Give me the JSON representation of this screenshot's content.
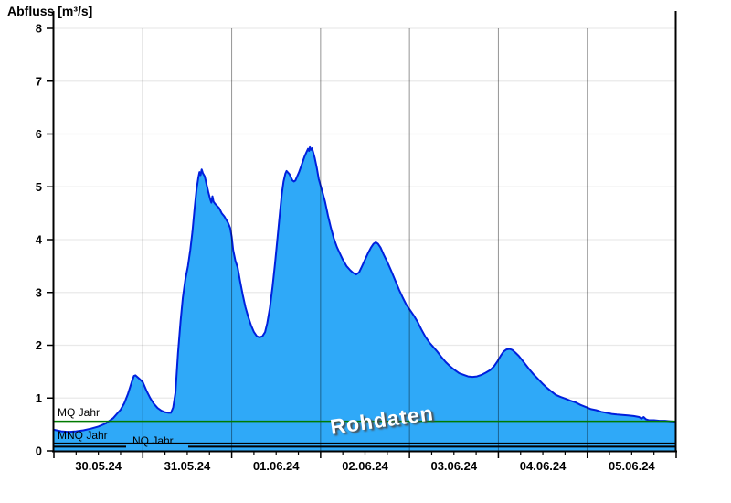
{
  "chart_data": {
    "type": "area",
    "title": "Abfluss [m³/s]",
    "watermark": "Rohdaten",
    "ylabel": "Abfluss [m³/s]",
    "xlabel": "",
    "ylim": [
      0,
      8
    ],
    "yticks": [
      0,
      1,
      2,
      3,
      4,
      5,
      6,
      7,
      8
    ],
    "x_start": "30.05.24 00:00",
    "x_end": "06.06.24 00:00",
    "x_span_hours": 168,
    "x_tick_labels": [
      "30.05.24",
      "31.05.24",
      "01.06.24",
      "02.06.24",
      "03.06.24",
      "04.06.24",
      "05.06.24"
    ],
    "x_minor_tick_hours": 6,
    "grid": {
      "horizontal": true,
      "vertical_day_boundaries": true,
      "legend": "none"
    },
    "reference_lines": [
      {
        "label": "MQ Jahr",
        "value": 0.56,
        "color": "#007A00"
      },
      {
        "label": "MNQ Jahr",
        "value": 0.14,
        "color": "#000000"
      },
      {
        "label": "NQ Jahr",
        "value": 0.08,
        "color": "#000000"
      }
    ],
    "series": [
      {
        "name": "Abfluss Rohdaten",
        "unit": "m³/s",
        "points_hours_value": [
          [
            0,
            0.4
          ],
          [
            2,
            0.37
          ],
          [
            4,
            0.36
          ],
          [
            6,
            0.37
          ],
          [
            8,
            0.39
          ],
          [
            10,
            0.42
          ],
          [
            12,
            0.46
          ],
          [
            14,
            0.52
          ],
          [
            16,
            0.62
          ],
          [
            17,
            0.7
          ],
          [
            18,
            0.78
          ],
          [
            19,
            0.9
          ],
          [
            20,
            1.08
          ],
          [
            21,
            1.3
          ],
          [
            21.6,
            1.42
          ],
          [
            22,
            1.43
          ],
          [
            22.5,
            1.4
          ],
          [
            23,
            1.37
          ],
          [
            24,
            1.3
          ],
          [
            25,
            1.14
          ],
          [
            26,
            1.0
          ],
          [
            27,
            0.89
          ],
          [
            28,
            0.81
          ],
          [
            29,
            0.76
          ],
          [
            30,
            0.73
          ],
          [
            31,
            0.72
          ],
          [
            31.6,
            0.72
          ],
          [
            32.2,
            0.82
          ],
          [
            32.8,
            1.1
          ],
          [
            33.5,
            1.85
          ],
          [
            34.2,
            2.45
          ],
          [
            34.8,
            2.9
          ],
          [
            35.5,
            3.25
          ],
          [
            36.2,
            3.5
          ],
          [
            36.8,
            3.8
          ],
          [
            37.4,
            4.15
          ],
          [
            38,
            4.6
          ],
          [
            38.5,
            4.95
          ],
          [
            39,
            5.18
          ],
          [
            39.3,
            5.28
          ],
          [
            39.6,
            5.22
          ],
          [
            39.9,
            5.33
          ],
          [
            40.2,
            5.26
          ],
          [
            40.7,
            5.2
          ],
          [
            41.2,
            5.05
          ],
          [
            41.7,
            4.9
          ],
          [
            42.2,
            4.76
          ],
          [
            42.5,
            4.7
          ],
          [
            42.8,
            4.82
          ],
          [
            43.1,
            4.72
          ],
          [
            43.5,
            4.68
          ],
          [
            44,
            4.64
          ],
          [
            44.6,
            4.6
          ],
          [
            45.3,
            4.5
          ],
          [
            46,
            4.44
          ],
          [
            47,
            4.32
          ],
          [
            47.6,
            4.22
          ],
          [
            48,
            4.05
          ],
          [
            48.4,
            3.8
          ],
          [
            49,
            3.6
          ],
          [
            49.6,
            3.47
          ],
          [
            50.3,
            3.2
          ],
          [
            51,
            2.95
          ],
          [
            51.7,
            2.72
          ],
          [
            52.4,
            2.55
          ],
          [
            53.2,
            2.38
          ],
          [
            54,
            2.25
          ],
          [
            54.8,
            2.17
          ],
          [
            55.5,
            2.15
          ],
          [
            56.3,
            2.17
          ],
          [
            57,
            2.25
          ],
          [
            57.6,
            2.42
          ],
          [
            58.3,
            2.7
          ],
          [
            59,
            3.1
          ],
          [
            59.7,
            3.55
          ],
          [
            60.4,
            4.05
          ],
          [
            61,
            4.5
          ],
          [
            61.5,
            4.85
          ],
          [
            62,
            5.1
          ],
          [
            62.5,
            5.25
          ],
          [
            62.8,
            5.3
          ],
          [
            63.2,
            5.27
          ],
          [
            63.6,
            5.24
          ],
          [
            64,
            5.18
          ],
          [
            64.4,
            5.12
          ],
          [
            64.8,
            5.1
          ],
          [
            65.2,
            5.12
          ],
          [
            65.7,
            5.2
          ],
          [
            66.2,
            5.28
          ],
          [
            66.7,
            5.38
          ],
          [
            67.2,
            5.48
          ],
          [
            67.7,
            5.58
          ],
          [
            68.2,
            5.66
          ],
          [
            68.6,
            5.72
          ],
          [
            68.9,
            5.68
          ],
          [
            69.1,
            5.75
          ],
          [
            69.4,
            5.7
          ],
          [
            69.7,
            5.73
          ],
          [
            70,
            5.65
          ],
          [
            70.4,
            5.55
          ],
          [
            71,
            5.35
          ],
          [
            71.5,
            5.15
          ],
          [
            72,
            5.02
          ],
          [
            72.5,
            4.9
          ],
          [
            73.2,
            4.72
          ],
          [
            74,
            4.45
          ],
          [
            74.8,
            4.22
          ],
          [
            75.6,
            4.02
          ],
          [
            76.4,
            3.86
          ],
          [
            77.2,
            3.74
          ],
          [
            78,
            3.62
          ],
          [
            79,
            3.5
          ],
          [
            80,
            3.42
          ],
          [
            80.8,
            3.37
          ],
          [
            81.6,
            3.34
          ],
          [
            82.4,
            3.38
          ],
          [
            83.2,
            3.5
          ],
          [
            84,
            3.62
          ],
          [
            84.8,
            3.74
          ],
          [
            85.6,
            3.85
          ],
          [
            86.3,
            3.92
          ],
          [
            86.9,
            3.95
          ],
          [
            87.5,
            3.92
          ],
          [
            88.2,
            3.85
          ],
          [
            89,
            3.72
          ],
          [
            90,
            3.58
          ],
          [
            91,
            3.42
          ],
          [
            92.2,
            3.22
          ],
          [
            93.2,
            3.05
          ],
          [
            94.2,
            2.9
          ],
          [
            95.2,
            2.76
          ],
          [
            96.2,
            2.66
          ],
          [
            97.2,
            2.56
          ],
          [
            98.2,
            2.44
          ],
          [
            99.2,
            2.3
          ],
          [
            100.3,
            2.16
          ],
          [
            101.4,
            2.05
          ],
          [
            102.5,
            1.96
          ],
          [
            103.5,
            1.88
          ],
          [
            104.7,
            1.77
          ],
          [
            105.8,
            1.68
          ],
          [
            107,
            1.6
          ],
          [
            108.2,
            1.53
          ],
          [
            109.4,
            1.47
          ],
          [
            110.6,
            1.44
          ],
          [
            111.8,
            1.41
          ],
          [
            113,
            1.4
          ],
          [
            114.2,
            1.41
          ],
          [
            115.5,
            1.44
          ],
          [
            116.6,
            1.48
          ],
          [
            117.8,
            1.53
          ],
          [
            118.8,
            1.6
          ],
          [
            119.8,
            1.7
          ],
          [
            120.6,
            1.8
          ],
          [
            121.4,
            1.88
          ],
          [
            122.2,
            1.92
          ],
          [
            123,
            1.93
          ],
          [
            123.8,
            1.91
          ],
          [
            124.6,
            1.86
          ],
          [
            125.5,
            1.8
          ],
          [
            126.4,
            1.72
          ],
          [
            127.4,
            1.63
          ],
          [
            128.4,
            1.54
          ],
          [
            129.5,
            1.45
          ],
          [
            130.6,
            1.37
          ],
          [
            131.8,
            1.28
          ],
          [
            133,
            1.2
          ],
          [
            134.2,
            1.13
          ],
          [
            135.5,
            1.06
          ],
          [
            136.8,
            1.02
          ],
          [
            138,
            0.99
          ],
          [
            139.4,
            0.95
          ],
          [
            140.8,
            0.92
          ],
          [
            142.2,
            0.87
          ],
          [
            143.6,
            0.83
          ],
          [
            145,
            0.79
          ],
          [
            146.4,
            0.77
          ],
          [
            147.8,
            0.74
          ],
          [
            149.2,
            0.72
          ],
          [
            150.6,
            0.7
          ],
          [
            152,
            0.69
          ],
          [
            153.5,
            0.68
          ],
          [
            155,
            0.67
          ],
          [
            156.5,
            0.66
          ],
          [
            158,
            0.64
          ],
          [
            158.6,
            0.61
          ],
          [
            159.2,
            0.64
          ],
          [
            159.8,
            0.6
          ],
          [
            160.6,
            0.58
          ],
          [
            162,
            0.58
          ],
          [
            163.5,
            0.57
          ],
          [
            165,
            0.57
          ],
          [
            166.5,
            0.56
          ],
          [
            168,
            0.55
          ]
        ]
      }
    ],
    "colors": {
      "fill": "#2FA9F8",
      "stroke": "#0020DD",
      "grid_horizontal": "#E9E9E9",
      "grid_vertical": "rgba(0,0,0,0.42)",
      "axis": "#000000",
      "mq_line": "#007A00",
      "watermark_text": "#FFFFFF",
      "watermark_shadow": "#4A4A4A"
    }
  }
}
